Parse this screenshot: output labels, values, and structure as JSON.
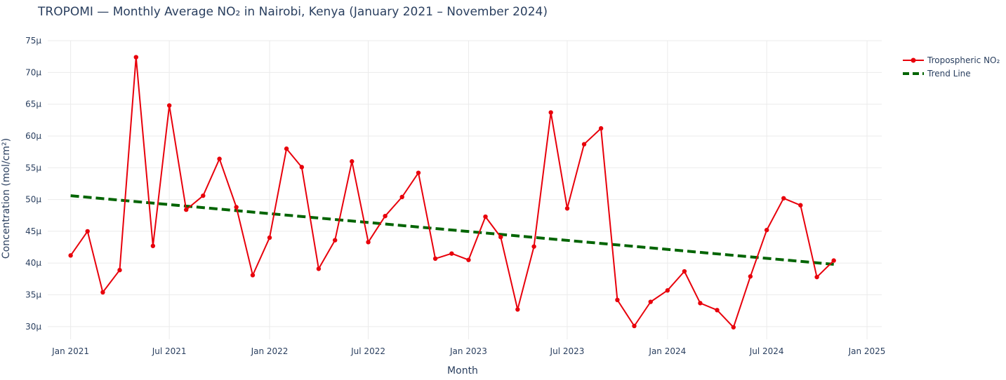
{
  "chart_data": {
    "type": "line",
    "title": "TROPOMI — Monthly Average NO₂ in Nairobi, Kenya (January 2021 – November 2024)",
    "xlabel": "Month",
    "ylabel": "Concentration (mol/cm²)",
    "ylim": [
      28,
      75
    ],
    "xlim": [
      "2020-11-20",
      "2025-01-28"
    ],
    "grid": true,
    "legend_position": "top-right",
    "y_ticks": [
      {
        "value": 30,
        "label": "30µ"
      },
      {
        "value": 35,
        "label": "35µ"
      },
      {
        "value": 40,
        "label": "40µ"
      },
      {
        "value": 45,
        "label": "45µ"
      },
      {
        "value": 50,
        "label": "50µ"
      },
      {
        "value": 55,
        "label": "55µ"
      },
      {
        "value": 60,
        "label": "60µ"
      },
      {
        "value": 65,
        "label": "65µ"
      },
      {
        "value": 70,
        "label": "70µ"
      },
      {
        "value": 75,
        "label": "75µ"
      }
    ],
    "x_ticks": [
      {
        "date": "2021-01-01",
        "label": "Jan 2021"
      },
      {
        "date": "2021-07-01",
        "label": "Jul 2021"
      },
      {
        "date": "2022-01-01",
        "label": "Jan 2022"
      },
      {
        "date": "2022-07-01",
        "label": "Jul 2022"
      },
      {
        "date": "2023-01-01",
        "label": "Jan 2023"
      },
      {
        "date": "2023-07-01",
        "label": "Jul 2023"
      },
      {
        "date": "2024-01-01",
        "label": "Jan 2024"
      },
      {
        "date": "2024-07-01",
        "label": "Jul 2024"
      },
      {
        "date": "2025-01-01",
        "label": "Jan 2025"
      }
    ],
    "series": [
      {
        "name": "Tropospheric NO₂",
        "color": "#e8000b",
        "style": "lines+markers",
        "x": [
          "2021-01-01",
          "2021-02-01",
          "2021-03-01",
          "2021-04-01",
          "2021-05-01",
          "2021-06-01",
          "2021-07-01",
          "2021-08-01",
          "2021-09-01",
          "2021-10-01",
          "2021-11-01",
          "2021-12-01",
          "2022-01-01",
          "2022-02-01",
          "2022-03-01",
          "2022-04-01",
          "2022-05-01",
          "2022-06-01",
          "2022-07-01",
          "2022-08-01",
          "2022-09-01",
          "2022-10-01",
          "2022-11-01",
          "2022-12-01",
          "2023-01-01",
          "2023-02-01",
          "2023-03-01",
          "2023-04-01",
          "2023-05-01",
          "2023-06-01",
          "2023-07-01",
          "2023-08-01",
          "2023-09-01",
          "2023-10-01",
          "2023-11-01",
          "2023-12-01",
          "2024-01-01",
          "2024-02-01",
          "2024-03-01",
          "2024-04-01",
          "2024-05-01",
          "2024-06-01",
          "2024-07-01",
          "2024-08-01",
          "2024-09-01",
          "2024-10-01",
          "2024-11-01"
        ],
        "values": [
          41.2,
          45.0,
          35.4,
          38.9,
          72.4,
          42.7,
          64.8,
          48.4,
          50.6,
          56.4,
          48.8,
          38.1,
          44.0,
          58.0,
          55.1,
          39.1,
          43.6,
          56.0,
          43.3,
          47.4,
          50.4,
          54.2,
          40.7,
          41.5,
          40.5,
          47.3,
          44.1,
          32.7,
          42.6,
          63.7,
          48.6,
          58.7,
          61.2,
          34.2,
          30.1,
          33.9,
          35.7,
          38.7,
          33.7,
          32.6,
          29.9,
          37.9,
          45.2,
          50.2,
          49.1,
          37.8,
          40.4
        ]
      },
      {
        "name": "Trend Line",
        "color": "#006400",
        "style": "dashed",
        "x": [
          "2021-01-01",
          "2024-11-01"
        ],
        "values": [
          50.6,
          39.8
        ]
      }
    ]
  }
}
